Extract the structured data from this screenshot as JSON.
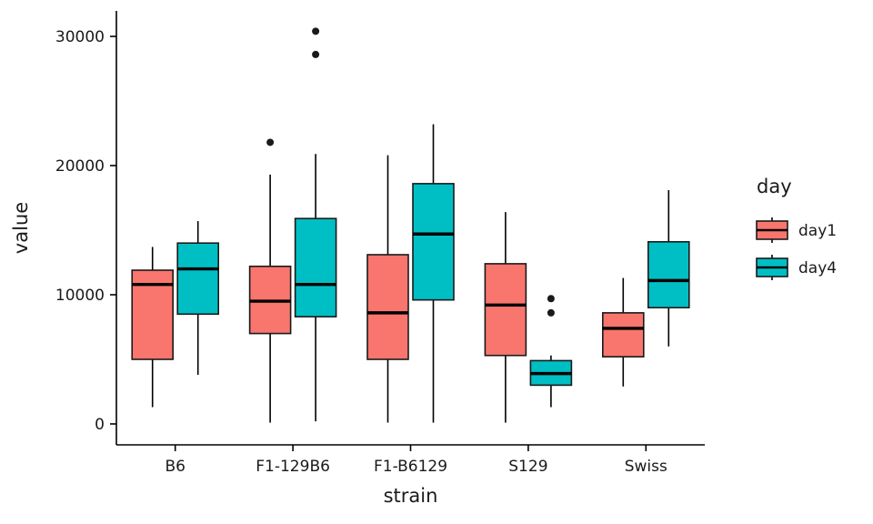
{
  "chart_data": {
    "type": "boxplot",
    "title": "",
    "xlabel": "strain",
    "ylabel": "value",
    "categories": [
      "B6",
      "F1-129B6",
      "F1-B6129",
      "S129",
      "Swiss"
    ],
    "ylim": [
      0,
      30000
    ],
    "yticks": [
      0,
      10000,
      20000,
      30000
    ],
    "ytick_labels": [
      "0",
      "10000",
      "20000",
      "30000"
    ],
    "grid": false,
    "panel_background": "#ffffff",
    "axis_color": "#000000",
    "legend": {
      "title": "day",
      "position": "right",
      "entries": [
        {
          "label": "day1",
          "color": "#F8766D"
        },
        {
          "label": "day4",
          "color": "#00BFC4"
        }
      ]
    },
    "series": [
      {
        "name": "day1",
        "color": "#F8766D",
        "boxes": [
          {
            "category": "B6",
            "whislo": 1300,
            "q1": 5000,
            "med": 10800,
            "q3": 11900,
            "whishi": 13700,
            "outliers": []
          },
          {
            "category": "F1-129B6",
            "whislo": 100,
            "q1": 7000,
            "med": 9500,
            "q3": 12200,
            "whishi": 19300,
            "outliers": [
              21800
            ]
          },
          {
            "category": "F1-B6129",
            "whislo": 100,
            "q1": 5000,
            "med": 8600,
            "q3": 13100,
            "whishi": 20800,
            "outliers": []
          },
          {
            "category": "S129",
            "whislo": 100,
            "q1": 5300,
            "med": 9200,
            "q3": 12400,
            "whishi": 16400,
            "outliers": []
          },
          {
            "category": "Swiss",
            "whislo": 2900,
            "q1": 5200,
            "med": 7400,
            "q3": 8600,
            "whishi": 11300,
            "outliers": []
          }
        ]
      },
      {
        "name": "day4",
        "color": "#00BFC4",
        "boxes": [
          {
            "category": "B6",
            "whislo": 3800,
            "q1": 8500,
            "med": 12000,
            "q3": 14000,
            "whishi": 15700,
            "outliers": []
          },
          {
            "category": "F1-129B6",
            "whislo": 200,
            "q1": 8300,
            "med": 10800,
            "q3": 15900,
            "whishi": 20900,
            "outliers": [
              30400,
              28600
            ]
          },
          {
            "category": "F1-B6129",
            "whislo": 100,
            "q1": 9600,
            "med": 14700,
            "q3": 18600,
            "whishi": 23200,
            "outliers": []
          },
          {
            "category": "S129",
            "whislo": 1300,
            "q1": 3000,
            "med": 3900,
            "q3": 4900,
            "whishi": 5300,
            "outliers": [
              9700,
              8600
            ]
          },
          {
            "category": "Swiss",
            "whislo": 6000,
            "q1": 9000,
            "med": 11100,
            "q3": 14100,
            "whishi": 18100,
            "outliers": []
          }
        ]
      }
    ]
  }
}
